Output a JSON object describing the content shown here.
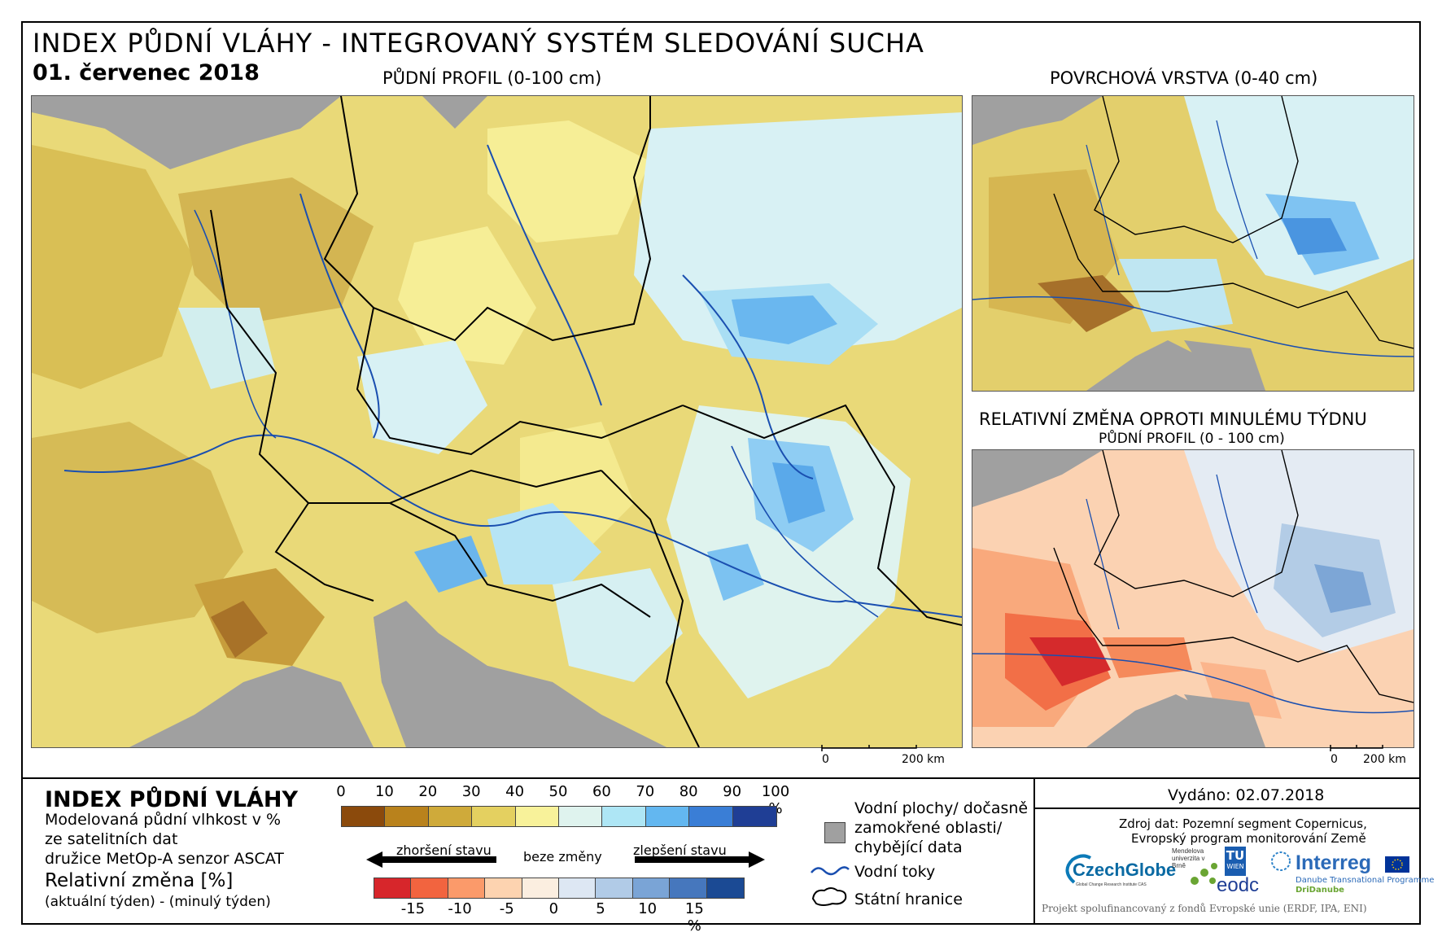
{
  "header": {
    "title": "INDEX PŮDNÍ VLÁHY - INTEGROVANÝ SYSTÉM SLEDOVÁNÍ SUCHA",
    "date": "01. červenec 2018",
    "main_map_label": "PŮDNÍ PROFIL (0-100 cm)",
    "top_right_label": "POVRCHOVÁ VRSTVA (0-40 cm)",
    "change_title": "RELATIVNÍ ZMĚNA OPROTI MINULÉMU TÝDNU",
    "change_subtitle": "PŮDNÍ PROFIL (0 - 100 cm)"
  },
  "scalebars": {
    "main": {
      "zero": "0",
      "end": "200 km"
    },
    "small": {
      "zero": "0",
      "end": "200 km"
    }
  },
  "legend": {
    "title": "INDEX PŮDNÍ VLÁHY",
    "desc_line1": "Modelovaná půdní vlhkost v %",
    "desc_line2": "ze satelitních dat",
    "desc_line3": "družice MetOp-A senzor ASCAT",
    "rel_title": "Relativní změna [%]",
    "rel_desc": "(aktuální týden) - (minulý týden)",
    "index_ticks": [
      "0",
      "10",
      "20",
      "30",
      "40",
      "50",
      "60",
      "70",
      "80",
      "90",
      "100 %"
    ],
    "index_colors": [
      "#8b4a0c",
      "#b9821c",
      "#cfaa3a",
      "#e4d060",
      "#f8f29a",
      "#dff3ee",
      "#aee6f5",
      "#63b7f0",
      "#3a7ed6",
      "#1f3e95"
    ],
    "worse_label": "zhoršení stavu",
    "nochange_label": "beze změny",
    "better_label": "zlepšení stavu",
    "change_ticks": [
      "-15",
      "-10",
      "-5",
      "0",
      "5",
      "10",
      "15 %"
    ],
    "change_colors": [
      "#d7262b",
      "#f2643f",
      "#fb9a6a",
      "#fdd3b0",
      "#fbeee0",
      "#dde7f3",
      "#b1cbe7",
      "#7aa4d6",
      "#4677bd",
      "#1b4a94"
    ],
    "water_label_1": "Vodní plochy/ dočasně",
    "water_label_2": "zamokřené oblasti/",
    "water_label_3": "chybějící data",
    "rivers_label": "Vodní toky",
    "borders_label": "Státní hranice"
  },
  "credits": {
    "issued": "Vydáno: 02.07.2018",
    "source_1": "Zdroj dat: Pozemní segment Copernicus,",
    "source_2": "Evropský program monitorování Země",
    "czechglobe": "CzechGlobe",
    "czechglobe_sub": "Global Change Research Institute CAS",
    "mendelu": "Mendelova univerzita v Brně",
    "tu": "TU",
    "tu_sub": "WIEN",
    "eodc": "eodc",
    "interreg": "Interreg",
    "interreg_sub1": "Danube Transnational Programme",
    "interreg_sub2": "DriDanube",
    "footer": "Projekt spolufinancovaný z fondů Evropské unie (ERDF, IPA, ENI)"
  },
  "colors": {
    "sea": "#a0a0a0",
    "river": "#1a4fb0",
    "border": "#000000"
  }
}
